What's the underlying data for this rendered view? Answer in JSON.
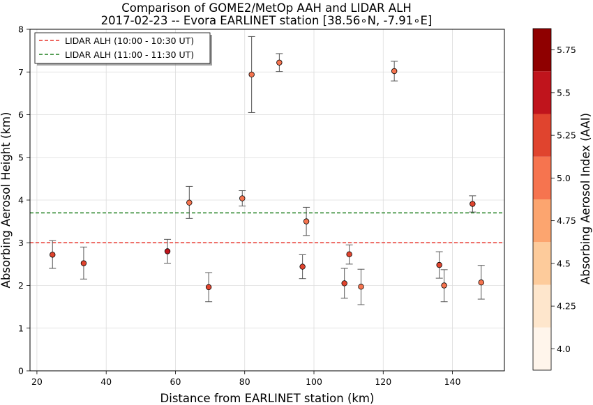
{
  "chart_data": {
    "type": "scatter",
    "title": "Comparison of GOME2/MetOp AAH and LIDAR ALH",
    "subtitle": "2017-02-23 -- Evora EARLINET station [38.56∘N, -7.91∘E]",
    "xlabel": "Distance from EARLINET station (km)",
    "ylabel": "Absorbing Aerosol Height (km)",
    "xlim": [
      18,
      155
    ],
    "ylim": [
      0,
      8
    ],
    "xticks": [
      "20",
      "40",
      "60",
      "80",
      "100",
      "120",
      "140"
    ],
    "yticks": [
      "0",
      "1",
      "2",
      "3",
      "4",
      "5",
      "6",
      "7",
      "8"
    ],
    "grid": true,
    "legend_position": "top-left",
    "hlines": [
      {
        "name": "LIDAR ALH (10:00 - 10:30 UT)",
        "y": 3.0,
        "color": "#e8322a",
        "style": "dashed"
      },
      {
        "name": "LIDAR ALH (11:00 - 11:30 UT)",
        "y": 3.7,
        "color": "#1e7f1e",
        "style": "dashed"
      }
    ],
    "points": [
      {
        "x": 24.5,
        "y": 2.72,
        "err_low": 2.4,
        "err_high": 3.05,
        "aai": 5.3
      },
      {
        "x": 33.5,
        "y": 2.52,
        "err_low": 2.15,
        "err_high": 2.9,
        "aai": 5.3
      },
      {
        "x": 57.7,
        "y": 2.8,
        "err_low": 2.52,
        "err_high": 3.08,
        "aai": 5.6
      },
      {
        "x": 64.0,
        "y": 3.94,
        "err_low": 3.57,
        "err_high": 4.32,
        "aai": 4.9
      },
      {
        "x": 69.6,
        "y": 1.96,
        "err_low": 1.62,
        "err_high": 2.3,
        "aai": 5.3
      },
      {
        "x": 79.3,
        "y": 4.04,
        "err_low": 3.86,
        "err_high": 4.22,
        "aai": 4.9
      },
      {
        "x": 82.0,
        "y": 6.94,
        "err_low": 6.05,
        "err_high": 7.83,
        "aai": 5.0
      },
      {
        "x": 90.0,
        "y": 7.22,
        "err_low": 7.01,
        "err_high": 7.43,
        "aai": 4.9
      },
      {
        "x": 96.7,
        "y": 2.44,
        "err_low": 2.16,
        "err_high": 2.72,
        "aai": 5.3
      },
      {
        "x": 97.8,
        "y": 3.5,
        "err_low": 3.17,
        "err_high": 3.83,
        "aai": 4.9
      },
      {
        "x": 108.8,
        "y": 2.05,
        "err_low": 1.7,
        "err_high": 2.4,
        "aai": 5.3
      },
      {
        "x": 110.2,
        "y": 2.73,
        "err_low": 2.5,
        "err_high": 2.95,
        "aai": 5.3
      },
      {
        "x": 113.6,
        "y": 1.97,
        "err_low": 1.55,
        "err_high": 2.38,
        "aai": 4.9
      },
      {
        "x": 123.2,
        "y": 7.02,
        "err_low": 6.79,
        "err_high": 7.25,
        "aai": 4.9
      },
      {
        "x": 136.2,
        "y": 2.48,
        "err_low": 2.17,
        "err_high": 2.79,
        "aai": 5.3
      },
      {
        "x": 137.6,
        "y": 2.0,
        "err_low": 1.62,
        "err_high": 2.37,
        "aai": 4.9
      },
      {
        "x": 145.8,
        "y": 3.91,
        "err_low": 3.72,
        "err_high": 4.1,
        "aai": 5.3
      },
      {
        "x": 148.3,
        "y": 2.07,
        "err_low": 1.68,
        "err_high": 2.47,
        "aai": 4.9
      }
    ],
    "colorbar": {
      "label": "Absorbing Aerosol Index (AAI)",
      "range": [
        3.875,
        5.875
      ],
      "ticks": [
        "4.0",
        "4.25",
        "4.5",
        "4.75",
        "5.0",
        "5.25",
        "5.5",
        "5.75"
      ],
      "levels": [
        3.875,
        4.125,
        4.375,
        4.625,
        4.875,
        5.125,
        5.375,
        5.625,
        5.875
      ],
      "colors": [
        "#fff5eb",
        "#fee6cc",
        "#fdcb9b",
        "#fca56f",
        "#f6744f",
        "#e0442e",
        "#c0141c",
        "#8f0000"
      ]
    }
  }
}
